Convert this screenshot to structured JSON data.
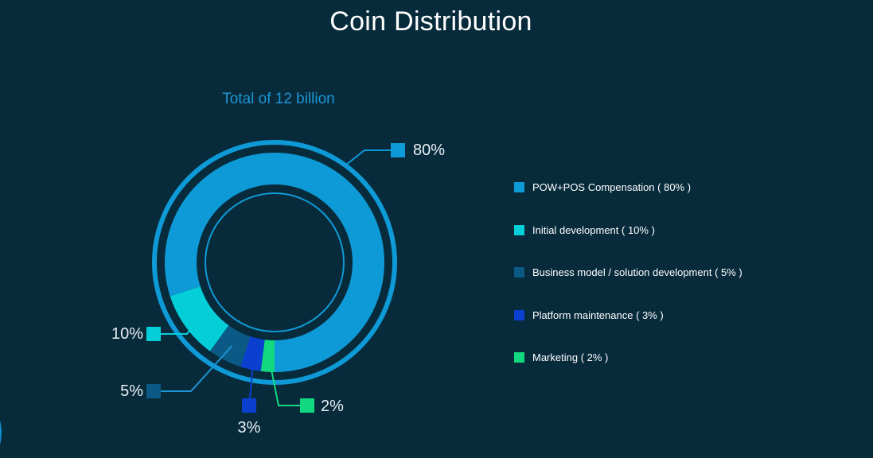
{
  "page": {
    "title": "Coin Distribution"
  },
  "chart_data": {
    "type": "pie",
    "variant": "donut",
    "subtitle": "Total of 12 billion",
    "categories": [
      "POW+POS Compensation ( 80% )",
      "Initial development ( 10% )",
      "Business model / solution development ( 5% )",
      "Platform maintenance ( 3% )",
      "Marketing ( 2% )"
    ],
    "values": [
      80,
      10,
      5,
      3,
      2
    ],
    "data_labels": [
      "80%",
      "10%",
      "5%",
      "3%",
      "2%"
    ],
    "colors": [
      "#0e9ad6",
      "#04cfd9",
      "#0a5a85",
      "#0a3fd0",
      "#12d980"
    ],
    "legend": "right",
    "background": "#082b3c",
    "ring_color": "#0e9ad6"
  }
}
